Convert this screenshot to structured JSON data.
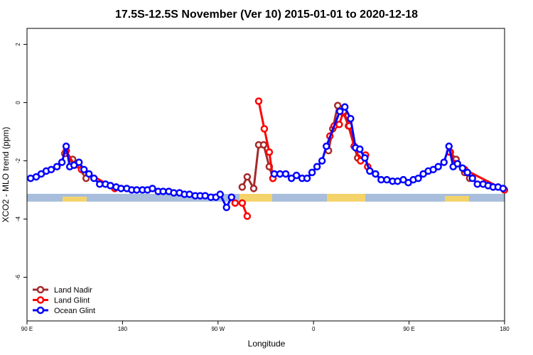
{
  "chart_data": {
    "type": "line",
    "title": "17.5S-12.5S November (Ver 10)   2015-01-01 to 2020-12-18",
    "xlabel": "Longitude",
    "ylabel": "XCO2 - MLO trend (ppm)",
    "xlim": [
      90,
      540
    ],
    "xticks": [
      {
        "value": 90,
        "label": "90 E"
      },
      180,
      {
        "value": 270,
        "label": "90 W"
      },
      {
        "value": 360,
        "label": "0"
      },
      {
        "value": 450,
        "label": "90 E"
      },
      {
        "value": 540,
        "label": "180"
      }
    ],
    "ylim": [
      -7.5,
      2.55
    ],
    "yticks": [
      -6,
      -4,
      -2,
      0,
      2
    ],
    "legend": "bottom-left",
    "series": [
      {
        "name": "Land Nadir",
        "color": "#a52a2a",
        "x": [
          125.6,
          133,
          145.7,
          219,
          292.8,
          297.5,
          303.6,
          308.3,
          313,
          318.3,
          321.7,
          350,
          374.1,
          378.1,
          382.8,
          388.2,
          392.9,
          398.3,
          401.6,
          450,
          488.9,
          494.3,
          502.4,
          507.1
        ],
        "values": [
          -1.75,
          -1.95,
          -2.6,
          null,
          -2.9,
          -2.55,
          -2.95,
          -1.45,
          -1.45,
          -2.2,
          -2.6,
          null,
          -1.65,
          -0.9,
          -0.1,
          -0.35,
          -0.8,
          -1.5,
          -1.9,
          null,
          -1.7,
          -1.95,
          -2.4,
          -2.6
        ]
      },
      {
        "name": "Land Glint",
        "color": "#ff0000",
        "x": [
          127,
          134.7,
          141.4,
          172.7,
          230,
          286.1,
          292.8,
          297.5,
          303,
          308.3,
          313.6,
          318.3,
          321.7,
          350,
          375.4,
          379.5,
          384.2,
          388.2,
          393.6,
          398.3,
          404.3,
          409,
          411,
          450,
          488.2,
          493.6,
          502.4,
          539.9
        ],
        "values": [
          -1.65,
          -2.15,
          -2.3,
          -2.95,
          null,
          -3.45,
          -3.45,
          -3.9,
          null,
          0.05,
          -0.9,
          -1.7,
          -2.6,
          null,
          -1.15,
          -0.8,
          -0.75,
          -0.3,
          -0.8,
          -1.5,
          -2.0,
          -1.8,
          -2.2,
          null,
          -1.7,
          -2.1,
          -2.3,
          -3.0
        ]
      },
      {
        "name": "Ocean Glint",
        "color": "#0000ff",
        "x": [
          93.4,
          98.7,
          103.4,
          108.1,
          112.8,
          118.2,
          122.9,
          126.9,
          130.3,
          134.3,
          139.0,
          143.7,
          148.4,
          153.1,
          158.5,
          163.9,
          168.6,
          174.0,
          178.6,
          184.0,
          188.7,
          193.4,
          198.8,
          203.5,
          208.2,
          213.6,
          218.3,
          223.6,
          228.3,
          233.7,
          238.4,
          243.1,
          248.5,
          253.2,
          257.9,
          263.3,
          268.0,
          272.0,
          278.0,
          282.7,
          286.1,
          300,
          323.0,
          328.4,
          333.8,
          339.2,
          343.9,
          349.2,
          353.9,
          358.6,
          363.3,
          368.0,
          372.1,
          384.8,
          389.5,
          394.9,
          399.6,
          403.6,
          408.3,
          413.0,
          418.4,
          423.7,
          429.1,
          434.5,
          439.2,
          444.6,
          449.3,
          454.0,
          458.7,
          463.4,
          468.1,
          472.8,
          477.5,
          482.9,
          487.6,
          491.6,
          495.6,
          500.4,
          505.0,
          509.7,
          514.4,
          519.8,
          524.5,
          529.2,
          533.9,
          538.6
        ],
        "values": [
          -2.6,
          -2.55,
          -2.45,
          -2.35,
          -2.3,
          -2.2,
          -2.05,
          -1.5,
          -2.2,
          -2.15,
          -2.05,
          -2.3,
          -2.45,
          -2.6,
          -2.8,
          -2.8,
          -2.85,
          -2.9,
          -2.95,
          -2.95,
          -3.0,
          -3.0,
          -3.0,
          -3.0,
          -2.95,
          -3.05,
          -3.05,
          -3.05,
          -3.1,
          -3.1,
          -3.15,
          -3.15,
          -3.2,
          -3.2,
          -3.2,
          -3.25,
          -3.25,
          -3.15,
          -3.6,
          -3.25,
          null,
          null,
          -2.45,
          -2.45,
          -2.45,
          -2.6,
          -2.5,
          -2.6,
          -2.6,
          -2.4,
          -2.2,
          -2.0,
          -1.5,
          -0.3,
          -0.15,
          -0.55,
          -1.55,
          -1.6,
          -1.9,
          -2.35,
          -2.45,
          -2.65,
          -2.65,
          -2.7,
          -2.7,
          -2.65,
          -2.75,
          -2.65,
          -2.6,
          -2.45,
          -2.35,
          -2.3,
          -2.2,
          -2.05,
          -1.5,
          -2.2,
          -2.1,
          -2.25,
          -2.4,
          -2.6,
          -2.8,
          -2.8,
          -2.85,
          -2.9,
          -2.9,
          -2.95
        ]
      }
    ]
  }
}
